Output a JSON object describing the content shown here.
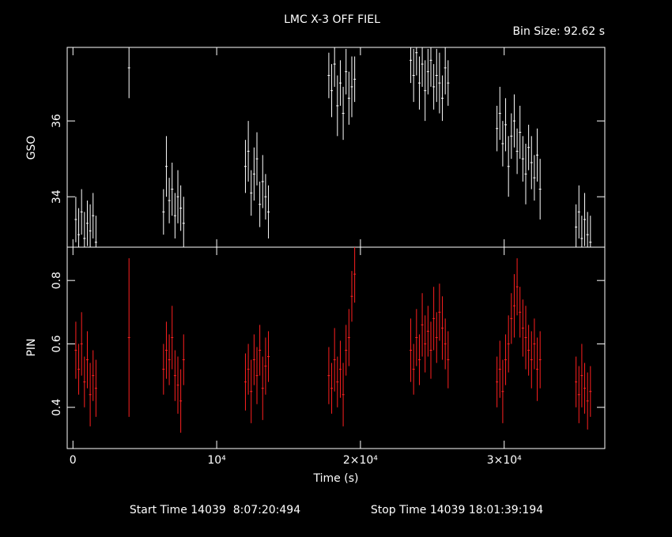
{
  "chart_data": [
    {
      "type": "errorbar",
      "title": "LMC X-3 OFF FIEL",
      "subtitle": "Bin Size: 92.62 s",
      "ylabel": "GSO",
      "color": "#ffffff",
      "xlim": [
        -400,
        37000
      ],
      "ylim": [
        32.67,
        37.94
      ],
      "yticks": [
        34,
        36
      ],
      "x": [
        200,
        400,
        600,
        800,
        1000,
        1200,
        1400,
        1600,
        3900,
        6300,
        6500,
        6700,
        6900,
        7100,
        7300,
        7500,
        7700,
        12000,
        12200,
        12400,
        12600,
        12800,
        13000,
        13200,
        13400,
        13600,
        17800,
        18000,
        18200,
        18400,
        18600,
        18800,
        19000,
        19200,
        19400,
        19600,
        23500,
        23700,
        23900,
        24100,
        24300,
        24500,
        24700,
        24900,
        25100,
        25300,
        25500,
        25700,
        25900,
        26100,
        29500,
        29700,
        29900,
        30100,
        30300,
        30500,
        30700,
        30900,
        31100,
        31300,
        31500,
        31700,
        31900,
        32100,
        32300,
        32500,
        35000,
        35200,
        35400,
        35600,
        35800,
        36000
      ],
      "values": [
        33.4,
        33.0,
        33.6,
        32.9,
        33.3,
        33.1,
        33.5,
        32.8,
        37.4,
        33.6,
        34.8,
        33.9,
        34.2,
        33.5,
        34.0,
        33.7,
        33.3,
        34.8,
        35.2,
        34.1,
        34.6,
        35.0,
        33.8,
        34.4,
        34.0,
        33.6,
        37.2,
        36.8,
        37.5,
        36.4,
        37.0,
        36.2,
        37.3,
        36.6,
        36.9,
        37.1,
        37.6,
        37.2,
        37.8,
        37.0,
        37.5,
        36.8,
        37.3,
        37.6,
        36.9,
        37.2,
        37.0,
        36.6,
        37.4,
        37.0,
        35.8,
        36.2,
        35.4,
        35.9,
        34.8,
        35.6,
        36.0,
        35.2,
        35.7,
        35.0,
        34.6,
        35.3,
        34.9,
        34.5,
        35.1,
        34.2,
        33.2,
        33.6,
        32.9,
        33.4,
        33.0,
        32.8
      ],
      "errors": [
        0.6,
        0.7,
        0.6,
        0.7,
        0.6,
        0.7,
        0.6,
        0.7,
        0.8,
        0.6,
        0.8,
        0.6,
        0.7,
        0.6,
        0.7,
        0.6,
        0.7,
        0.7,
        0.8,
        0.6,
        0.7,
        0.7,
        0.6,
        0.7,
        0.6,
        0.7,
        0.6,
        0.7,
        0.6,
        0.8,
        0.6,
        0.7,
        0.6,
        0.7,
        0.8,
        0.6,
        0.6,
        0.7,
        0.6,
        0.7,
        0.6,
        0.8,
        0.6,
        0.7,
        0.6,
        0.7,
        0.8,
        0.6,
        0.7,
        0.6,
        0.6,
        0.7,
        0.6,
        0.7,
        0.8,
        0.6,
        0.7,
        0.6,
        0.7,
        0.6,
        0.8,
        0.6,
        0.7,
        0.6,
        0.7,
        0.8,
        0.6,
        0.7,
        0.6,
        0.7,
        0.6,
        0.7
      ]
    },
    {
      "type": "errorbar",
      "xlabel": "Time (s)",
      "ylabel": "PIN",
      "color": "#ff2020",
      "footer_start": "Start Time 14039  8:07:20:494",
      "footer_stop": "Stop Time 14039 18:01:39:194",
      "xlim": [
        -400,
        37000
      ],
      "xticks": [
        0,
        {
          "value": 10000,
          "label": "10⁴"
        },
        {
          "value": 20000,
          "label": "2×10⁴"
        },
        {
          "value": 30000,
          "label": "3×10⁴"
        }
      ],
      "ylim": [
        0.27,
        0.905
      ],
      "yticks": [
        0.4,
        0.6,
        0.8
      ],
      "x": [
        200,
        400,
        600,
        800,
        1000,
        1200,
        1400,
        1600,
        3900,
        6300,
        6500,
        6700,
        6900,
        7100,
        7300,
        7500,
        7700,
        12000,
        12200,
        12400,
        12600,
        12800,
        13000,
        13200,
        13400,
        13600,
        17800,
        18000,
        18200,
        18400,
        18600,
        18800,
        19000,
        19200,
        19400,
        19600,
        23500,
        23700,
        23900,
        24100,
        24300,
        24500,
        24700,
        24900,
        25100,
        25300,
        25500,
        25700,
        25900,
        26100,
        29500,
        29700,
        29900,
        30100,
        30300,
        30500,
        30700,
        30900,
        31100,
        31300,
        31500,
        31700,
        31900,
        32100,
        32300,
        32500,
        35000,
        35200,
        35400,
        35600,
        35800,
        36000
      ],
      "values": [
        0.58,
        0.52,
        0.6,
        0.48,
        0.55,
        0.44,
        0.5,
        0.46,
        0.62,
        0.52,
        0.58,
        0.55,
        0.62,
        0.5,
        0.47,
        0.42,
        0.55,
        0.48,
        0.52,
        0.45,
        0.55,
        0.5,
        0.58,
        0.46,
        0.53,
        0.56,
        0.5,
        0.46,
        0.55,
        0.48,
        0.52,
        0.44,
        0.58,
        0.62,
        0.75,
        0.82,
        0.58,
        0.52,
        0.62,
        0.55,
        0.66,
        0.6,
        0.64,
        0.58,
        0.68,
        0.62,
        0.7,
        0.65,
        0.6,
        0.55,
        0.48,
        0.52,
        0.45,
        0.55,
        0.6,
        0.68,
        0.72,
        0.78,
        0.7,
        0.65,
        0.62,
        0.58,
        0.55,
        0.6,
        0.52,
        0.55,
        0.48,
        0.44,
        0.5,
        0.46,
        0.42,
        0.45
      ],
      "errors": [
        0.09,
        0.08,
        0.1,
        0.08,
        0.09,
        0.1,
        0.08,
        0.09,
        0.25,
        0.08,
        0.09,
        0.08,
        0.1,
        0.08,
        0.09,
        0.1,
        0.08,
        0.09,
        0.08,
        0.1,
        0.08,
        0.09,
        0.08,
        0.1,
        0.09,
        0.08,
        0.09,
        0.08,
        0.1,
        0.08,
        0.09,
        0.1,
        0.08,
        0.09,
        0.08,
        0.09,
        0.1,
        0.08,
        0.09,
        0.08,
        0.1,
        0.09,
        0.08,
        0.09,
        0.1,
        0.08,
        0.09,
        0.1,
        0.08,
        0.09,
        0.08,
        0.09,
        0.1,
        0.08,
        0.09,
        0.08,
        0.1,
        0.09,
        0.08,
        0.09,
        0.1,
        0.08,
        0.09,
        0.08,
        0.1,
        0.09,
        0.08,
        0.09,
        0.1,
        0.08,
        0.09,
        0.08
      ]
    }
  ]
}
